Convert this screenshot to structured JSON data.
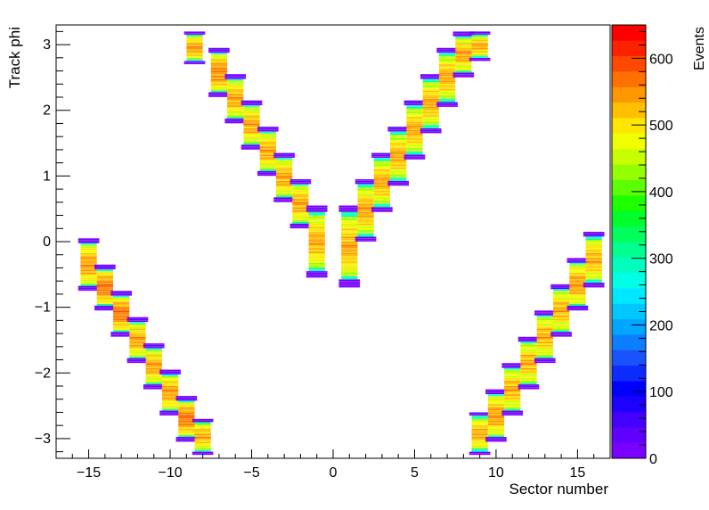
{
  "chart_data": {
    "type": "heatmap",
    "title": "",
    "xlabel": "Sector number",
    "ylabel": "Track phi",
    "zlabel": "Events",
    "xlim": [
      -17,
      17
    ],
    "ylim": [
      -3.3,
      3.3
    ],
    "zlim": [
      0,
      650
    ],
    "x_ticks": [
      -15,
      -10,
      -5,
      0,
      5,
      10,
      15
    ],
    "y_ticks": [
      -3,
      -2,
      -1,
      0,
      1,
      2,
      3
    ],
    "z_ticks": [
      0,
      100,
      200,
      300,
      400,
      500,
      600
    ],
    "palette": [
      "#7a00ff",
      "#6000ff",
      "#4400ff",
      "#1d00ff",
      "#0000ff",
      "#0d2bff",
      "#1953ff",
      "#0b7dff",
      "#00a6ff",
      "#00c8ff",
      "#00e8ff",
      "#00ffe6",
      "#00ffbf",
      "#00ff8f",
      "#00ff5c",
      "#00ff2a",
      "#1eff00",
      "#5cff00",
      "#94ff00",
      "#c8ff00",
      "#f0ff00",
      "#ffe600",
      "#ffc000",
      "#ff9800",
      "#ff7000",
      "#ff4800",
      "#ff2000",
      "#ff0000"
    ],
    "bands": [
      {
        "sector": -15,
        "phi_min": -0.75,
        "phi_max": 0.05,
        "peak": 570
      },
      {
        "sector": -14,
        "phi_min": -1.05,
        "phi_max": -0.35,
        "peak": 590
      },
      {
        "sector": -13,
        "phi_min": -1.45,
        "phi_max": -0.75,
        "peak": 590
      },
      {
        "sector": -12,
        "phi_min": -1.85,
        "phi_max": -1.15,
        "peak": 560
      },
      {
        "sector": -11,
        "phi_min": -2.25,
        "phi_max": -1.55,
        "peak": 560
      },
      {
        "sector": -10,
        "phi_min": -2.65,
        "phi_max": -1.95,
        "peak": 570
      },
      {
        "sector": -9,
        "phi_min": -3.05,
        "phi_max": -2.35,
        "peak": 590
      },
      {
        "sector": -8,
        "phi_min": -3.25,
        "phi_max": -2.7,
        "peak": 560
      },
      {
        "sector": -8.5,
        "phi_min": 2.7,
        "phi_max": 3.2,
        "peak": 570
      },
      {
        "sector": -7,
        "phi_min": 2.2,
        "phi_max": 2.95,
        "peak": 580
      },
      {
        "sector": -6,
        "phi_min": 1.8,
        "phi_max": 2.55,
        "peak": 560
      },
      {
        "sector": -5,
        "phi_min": 1.4,
        "phi_max": 2.15,
        "peak": 560
      },
      {
        "sector": -4,
        "phi_min": 1.0,
        "phi_max": 1.75,
        "peak": 560
      },
      {
        "sector": -3,
        "phi_min": 0.6,
        "phi_max": 1.35,
        "peak": 560
      },
      {
        "sector": -2,
        "phi_min": 0.2,
        "phi_max": 0.95,
        "peak": 560
      },
      {
        "sector": -1,
        "phi_min": -0.55,
        "phi_max": 0.55,
        "peak": 560
      },
      {
        "sector": 1,
        "phi_min": -0.7,
        "phi_max": 0.55,
        "peak": 560
      },
      {
        "sector": 2,
        "phi_min": 0.0,
        "phi_max": 0.95,
        "peak": 560
      },
      {
        "sector": 3,
        "phi_min": 0.45,
        "phi_max": 1.35,
        "peak": 560
      },
      {
        "sector": 4,
        "phi_min": 0.85,
        "phi_max": 1.75,
        "peak": 560
      },
      {
        "sector": 5,
        "phi_min": 1.25,
        "phi_max": 2.15,
        "peak": 560
      },
      {
        "sector": 6,
        "phi_min": 1.65,
        "phi_max": 2.55,
        "peak": 560
      },
      {
        "sector": 7,
        "phi_min": 2.05,
        "phi_max": 2.95,
        "peak": 560
      },
      {
        "sector": 8,
        "phi_min": 2.5,
        "phi_max": 3.2,
        "peak": 560
      },
      {
        "sector": 9,
        "phi_min": 2.75,
        "phi_max": 3.2,
        "peak": 560
      },
      {
        "sector": 9,
        "phi_min": -3.25,
        "phi_max": -2.6,
        "peak": 560
      },
      {
        "sector": 10,
        "phi_min": -3.05,
        "phi_max": -2.25,
        "peak": 570
      },
      {
        "sector": 11,
        "phi_min": -2.65,
        "phi_max": -1.85,
        "peak": 560
      },
      {
        "sector": 12,
        "phi_min": -2.25,
        "phi_max": -1.45,
        "peak": 560
      },
      {
        "sector": 13,
        "phi_min": -1.85,
        "phi_max": -1.05,
        "peak": 560
      },
      {
        "sector": 14,
        "phi_min": -1.45,
        "phi_max": -0.65,
        "peak": 560
      },
      {
        "sector": 15,
        "phi_min": -1.05,
        "phi_max": -0.25,
        "peak": 570
      },
      {
        "sector": 16,
        "phi_min": -0.7,
        "phi_max": 0.15,
        "peak": 560
      }
    ]
  }
}
